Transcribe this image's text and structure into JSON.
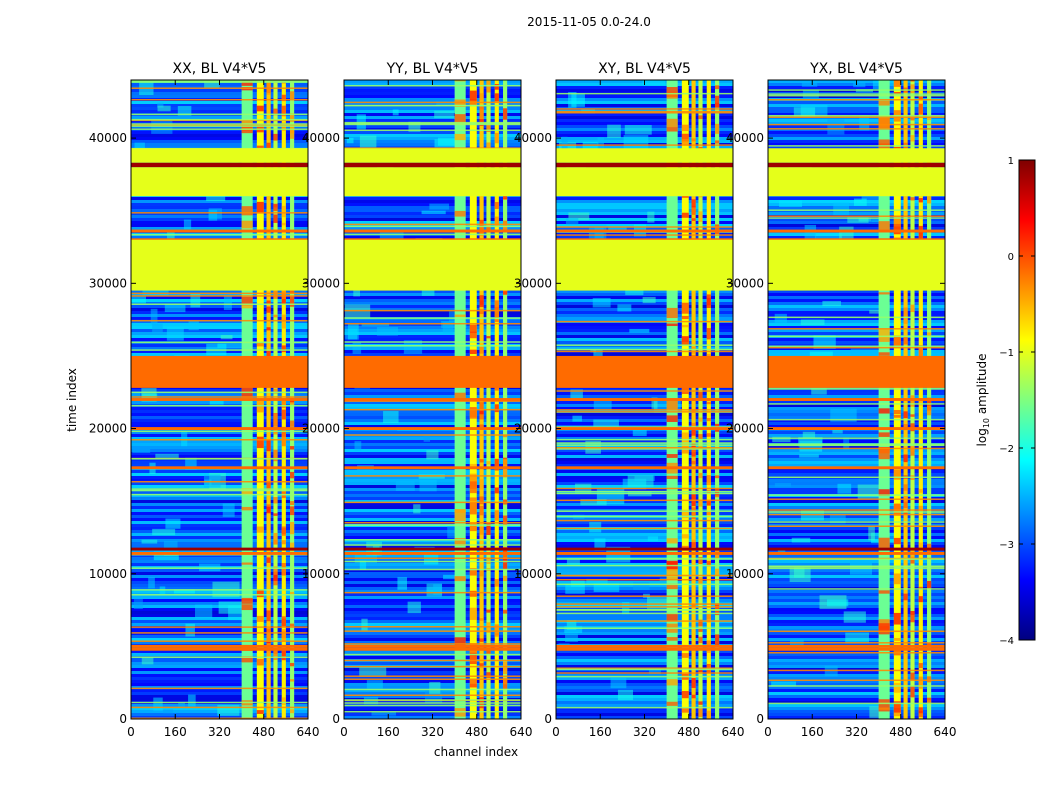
{
  "figure": {
    "suptitle": "2015-11-05 0.0-24.0",
    "shared_xlabel": "channel index",
    "shared_ylabel": "time index"
  },
  "chart_data": [
    {
      "type": "heatmap",
      "title": "XX, BL V4*V5",
      "xlabel": "channel index",
      "ylabel": "time index",
      "xlim": [
        0,
        640
      ],
      "ylim": [
        0,
        44000
      ],
      "xticks": [
        0,
        160,
        320,
        480,
        640
      ],
      "yticks": [
        0,
        10000,
        20000,
        30000,
        40000
      ],
      "colormap": "jet"
    },
    {
      "type": "heatmap",
      "title": "YY, BL V4*V5",
      "xlabel": "channel index",
      "ylabel": "time index",
      "xlim": [
        0,
        640
      ],
      "ylim": [
        0,
        44000
      ],
      "xticks": [
        0,
        160,
        320,
        480,
        640
      ],
      "yticks": [
        0,
        10000,
        20000,
        30000,
        40000
      ],
      "colormap": "jet"
    },
    {
      "type": "heatmap",
      "title": "XY, BL V4*V5",
      "xlabel": "channel index",
      "ylabel": "time index",
      "xlim": [
        0,
        640
      ],
      "ylim": [
        0,
        44000
      ],
      "xticks": [
        0,
        160,
        320,
        480,
        640
      ],
      "yticks": [
        0,
        10000,
        20000,
        30000,
        40000
      ],
      "colormap": "jet"
    },
    {
      "type": "heatmap",
      "title": "YX, BL V4*V5",
      "xlabel": "channel index",
      "ylabel": "time index",
      "xlim": [
        0,
        640
      ],
      "ylim": [
        0,
        44000
      ],
      "xticks": [
        0,
        160,
        320,
        480,
        640
      ],
      "yticks": [
        0,
        10000,
        20000,
        30000,
        40000
      ],
      "colormap": "jet"
    }
  ],
  "colorbar": {
    "label": "log",
    "label_sub": "10",
    "label_rest": " amplitude",
    "range": [
      -4,
      1
    ],
    "ticks": [
      1,
      0,
      -1,
      -2,
      -3,
      -4
    ],
    "tick_labels": [
      "1",
      "0",
      "−1",
      "−2",
      "−3",
      "−4"
    ],
    "colormap": "jet",
    "colors": [
      "#00007f",
      "#0000ff",
      "#007fff",
      "#00ffff",
      "#7fff7f",
      "#ffff00",
      "#ff7f00",
      "#ff0000",
      "#7f0000"
    ]
  },
  "bands": {
    "flagged_green": [
      [
        29500,
        33000
      ],
      [
        36000,
        38000
      ],
      [
        38300,
        39300
      ]
    ],
    "dark_red": [
      [
        38000,
        38300
      ],
      [
        11600,
        11800
      ]
    ],
    "orange": [
      [
        22800,
        25000
      ],
      [
        32900,
        33100
      ],
      [
        33500,
        33700
      ],
      [
        4700,
        4900
      ],
      [
        4900,
        5100
      ],
      [
        11300,
        11500
      ],
      [
        21900,
        22100
      ],
      [
        17200,
        17400
      ],
      [
        19900,
        20100
      ]
    ],
    "rfi_columns": [
      [
        400,
        440
      ],
      [
        455,
        480
      ],
      [
        490,
        505
      ],
      [
        515,
        530
      ],
      [
        545,
        560
      ],
      [
        575,
        590
      ]
    ]
  }
}
